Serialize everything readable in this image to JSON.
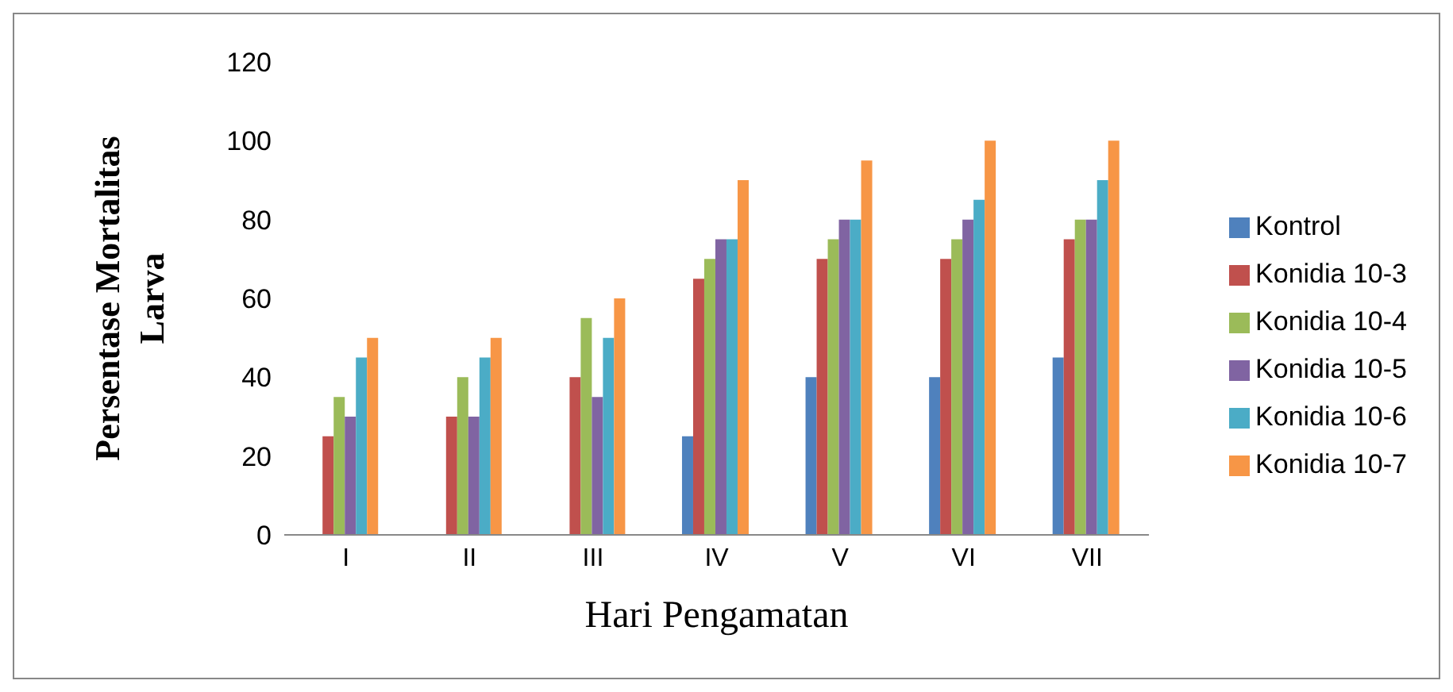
{
  "chart_data": {
    "type": "bar",
    "xlabel": "Hari Pengamatan",
    "ylabel": "Persentase Mortalitas Larva",
    "categories": [
      "I",
      "II",
      "III",
      "IV",
      "V",
      "VI",
      "VII"
    ],
    "series": [
      {
        "name": "Kontrol",
        "color": "#4f81bd",
        "values": [
          0,
          0,
          0,
          25,
          40,
          40,
          45
        ]
      },
      {
        "name": "Konidia 10-3",
        "color": "#c0504d",
        "values": [
          25,
          30,
          40,
          65,
          70,
          70,
          75
        ]
      },
      {
        "name": "Konidia 10-4",
        "color": "#9bbb59",
        "values": [
          35,
          40,
          55,
          70,
          75,
          75,
          80
        ]
      },
      {
        "name": "Konidia 10-5",
        "color": "#8064a2",
        "values": [
          30,
          30,
          35,
          75,
          80,
          80,
          80
        ]
      },
      {
        "name": "Konidia 10-6",
        "color": "#4bacc6",
        "values": [
          45,
          45,
          50,
          75,
          80,
          85,
          90
        ]
      },
      {
        "name": "Konidia 10-7",
        "color": "#f79646",
        "values": [
          50,
          50,
          60,
          90,
          95,
          100,
          100
        ]
      }
    ],
    "ylim": [
      0,
      120
    ],
    "yticks": [
      0,
      20,
      40,
      60,
      80,
      100,
      120
    ],
    "grid": false,
    "legend": "right"
  }
}
